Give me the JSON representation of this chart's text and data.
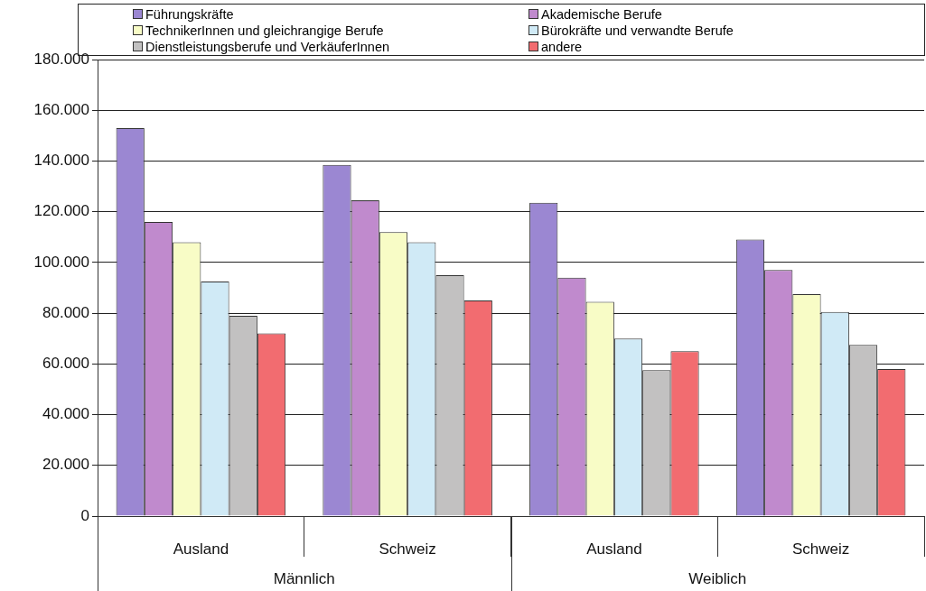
{
  "chart_data": {
    "type": "bar",
    "categories": [
      "Ausland",
      "Schweiz",
      "Ausland",
      "Schweiz"
    ],
    "series": [
      {
        "name": "Führungskräfte",
        "color": "#9b87d2",
        "values": [
          153000,
          138500,
          123500,
          109000
        ]
      },
      {
        "name": "Akademische Berufe",
        "color": "#c08acd",
        "values": [
          116000,
          124500,
          94000,
          97000
        ]
      },
      {
        "name": "TechnikerInnen und gleichrangige Berufe",
        "color": "#f8fcc6",
        "values": [
          108000,
          112000,
          84500,
          87500
        ]
      },
      {
        "name": "Bürokräfte und verwandte Berufe",
        "color": "#d0eaf6",
        "values": [
          92500,
          108000,
          70000,
          80500
        ]
      },
      {
        "name": "Dienstleistungsberufe und VerkäuferInnen",
        "color": "#c2c1c1",
        "values": [
          79000,
          95000,
          57500,
          67500
        ]
      },
      {
        "name": "andere",
        "color": "#f26c70",
        "values": [
          72000,
          85000,
          65000,
          58000
        ]
      }
    ],
    "ylim": [
      0,
      180000
    ],
    "yticks": [
      {
        "value": 0,
        "label": "0"
      },
      {
        "value": 20000,
        "label": "20.000"
      },
      {
        "value": 40000,
        "label": "40.000"
      },
      {
        "value": 60000,
        "label": "60.000"
      },
      {
        "value": 80000,
        "label": "80.000"
      },
      {
        "value": 100000,
        "label": "100.000"
      },
      {
        "value": 120000,
        "label": "120.000"
      },
      {
        "value": 140000,
        "label": "140.000"
      },
      {
        "value": 160000,
        "label": "160.000"
      },
      {
        "value": 180000,
        "label": "180.000"
      }
    ],
    "grid": "y",
    "legend": "top",
    "annotations": [
      "Männlich",
      "Weiblich"
    ]
  }
}
